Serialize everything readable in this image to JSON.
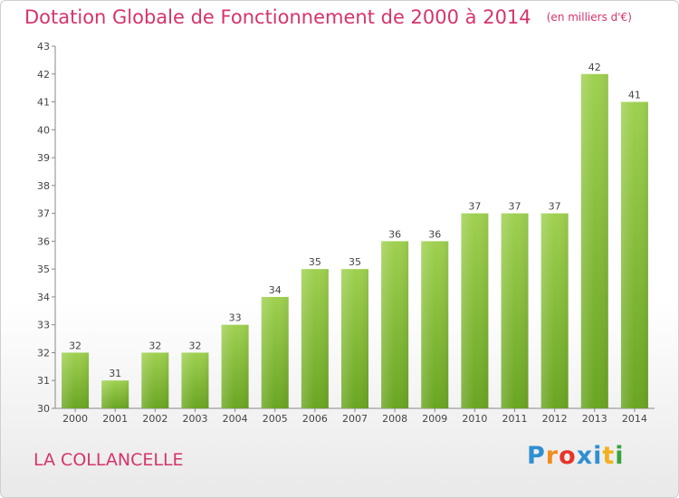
{
  "title": "Dotation Globale de Fonctionnement de 2000 à 2014",
  "unit": "(en milliers d'€)",
  "commune": "LA COLLANCELLE",
  "logo": {
    "letters": [
      "P",
      "r",
      "o",
      "x",
      "i",
      "t",
      "i"
    ],
    "colors": [
      "#2f8fd0",
      "#f28c1d",
      "#e8332a",
      "#2f8fd0",
      "#2f8fd0",
      "#f2b01d",
      "#38a33c"
    ]
  },
  "colors": {
    "title": "#d6336c",
    "bar_light": "#9fd050",
    "bar_dark": "#6aa522",
    "axis": "#888888",
    "grid": "#dddddd"
  },
  "chart_data": {
    "type": "bar",
    "categories": [
      "2000",
      "2001",
      "2002",
      "2003",
      "2004",
      "2005",
      "2006",
      "2007",
      "2008",
      "2009",
      "2010",
      "2011",
      "2012",
      "2013",
      "2014"
    ],
    "values": [
      32,
      31,
      32,
      32,
      33,
      34,
      35,
      35,
      36,
      36,
      37,
      37,
      37,
      42,
      41
    ],
    "ylim": [
      30,
      43
    ],
    "yticks": [
      30,
      31,
      32,
      33,
      34,
      35,
      36,
      37,
      38,
      39,
      40,
      41,
      42,
      43
    ],
    "grid": false,
    "data_labels": true
  }
}
